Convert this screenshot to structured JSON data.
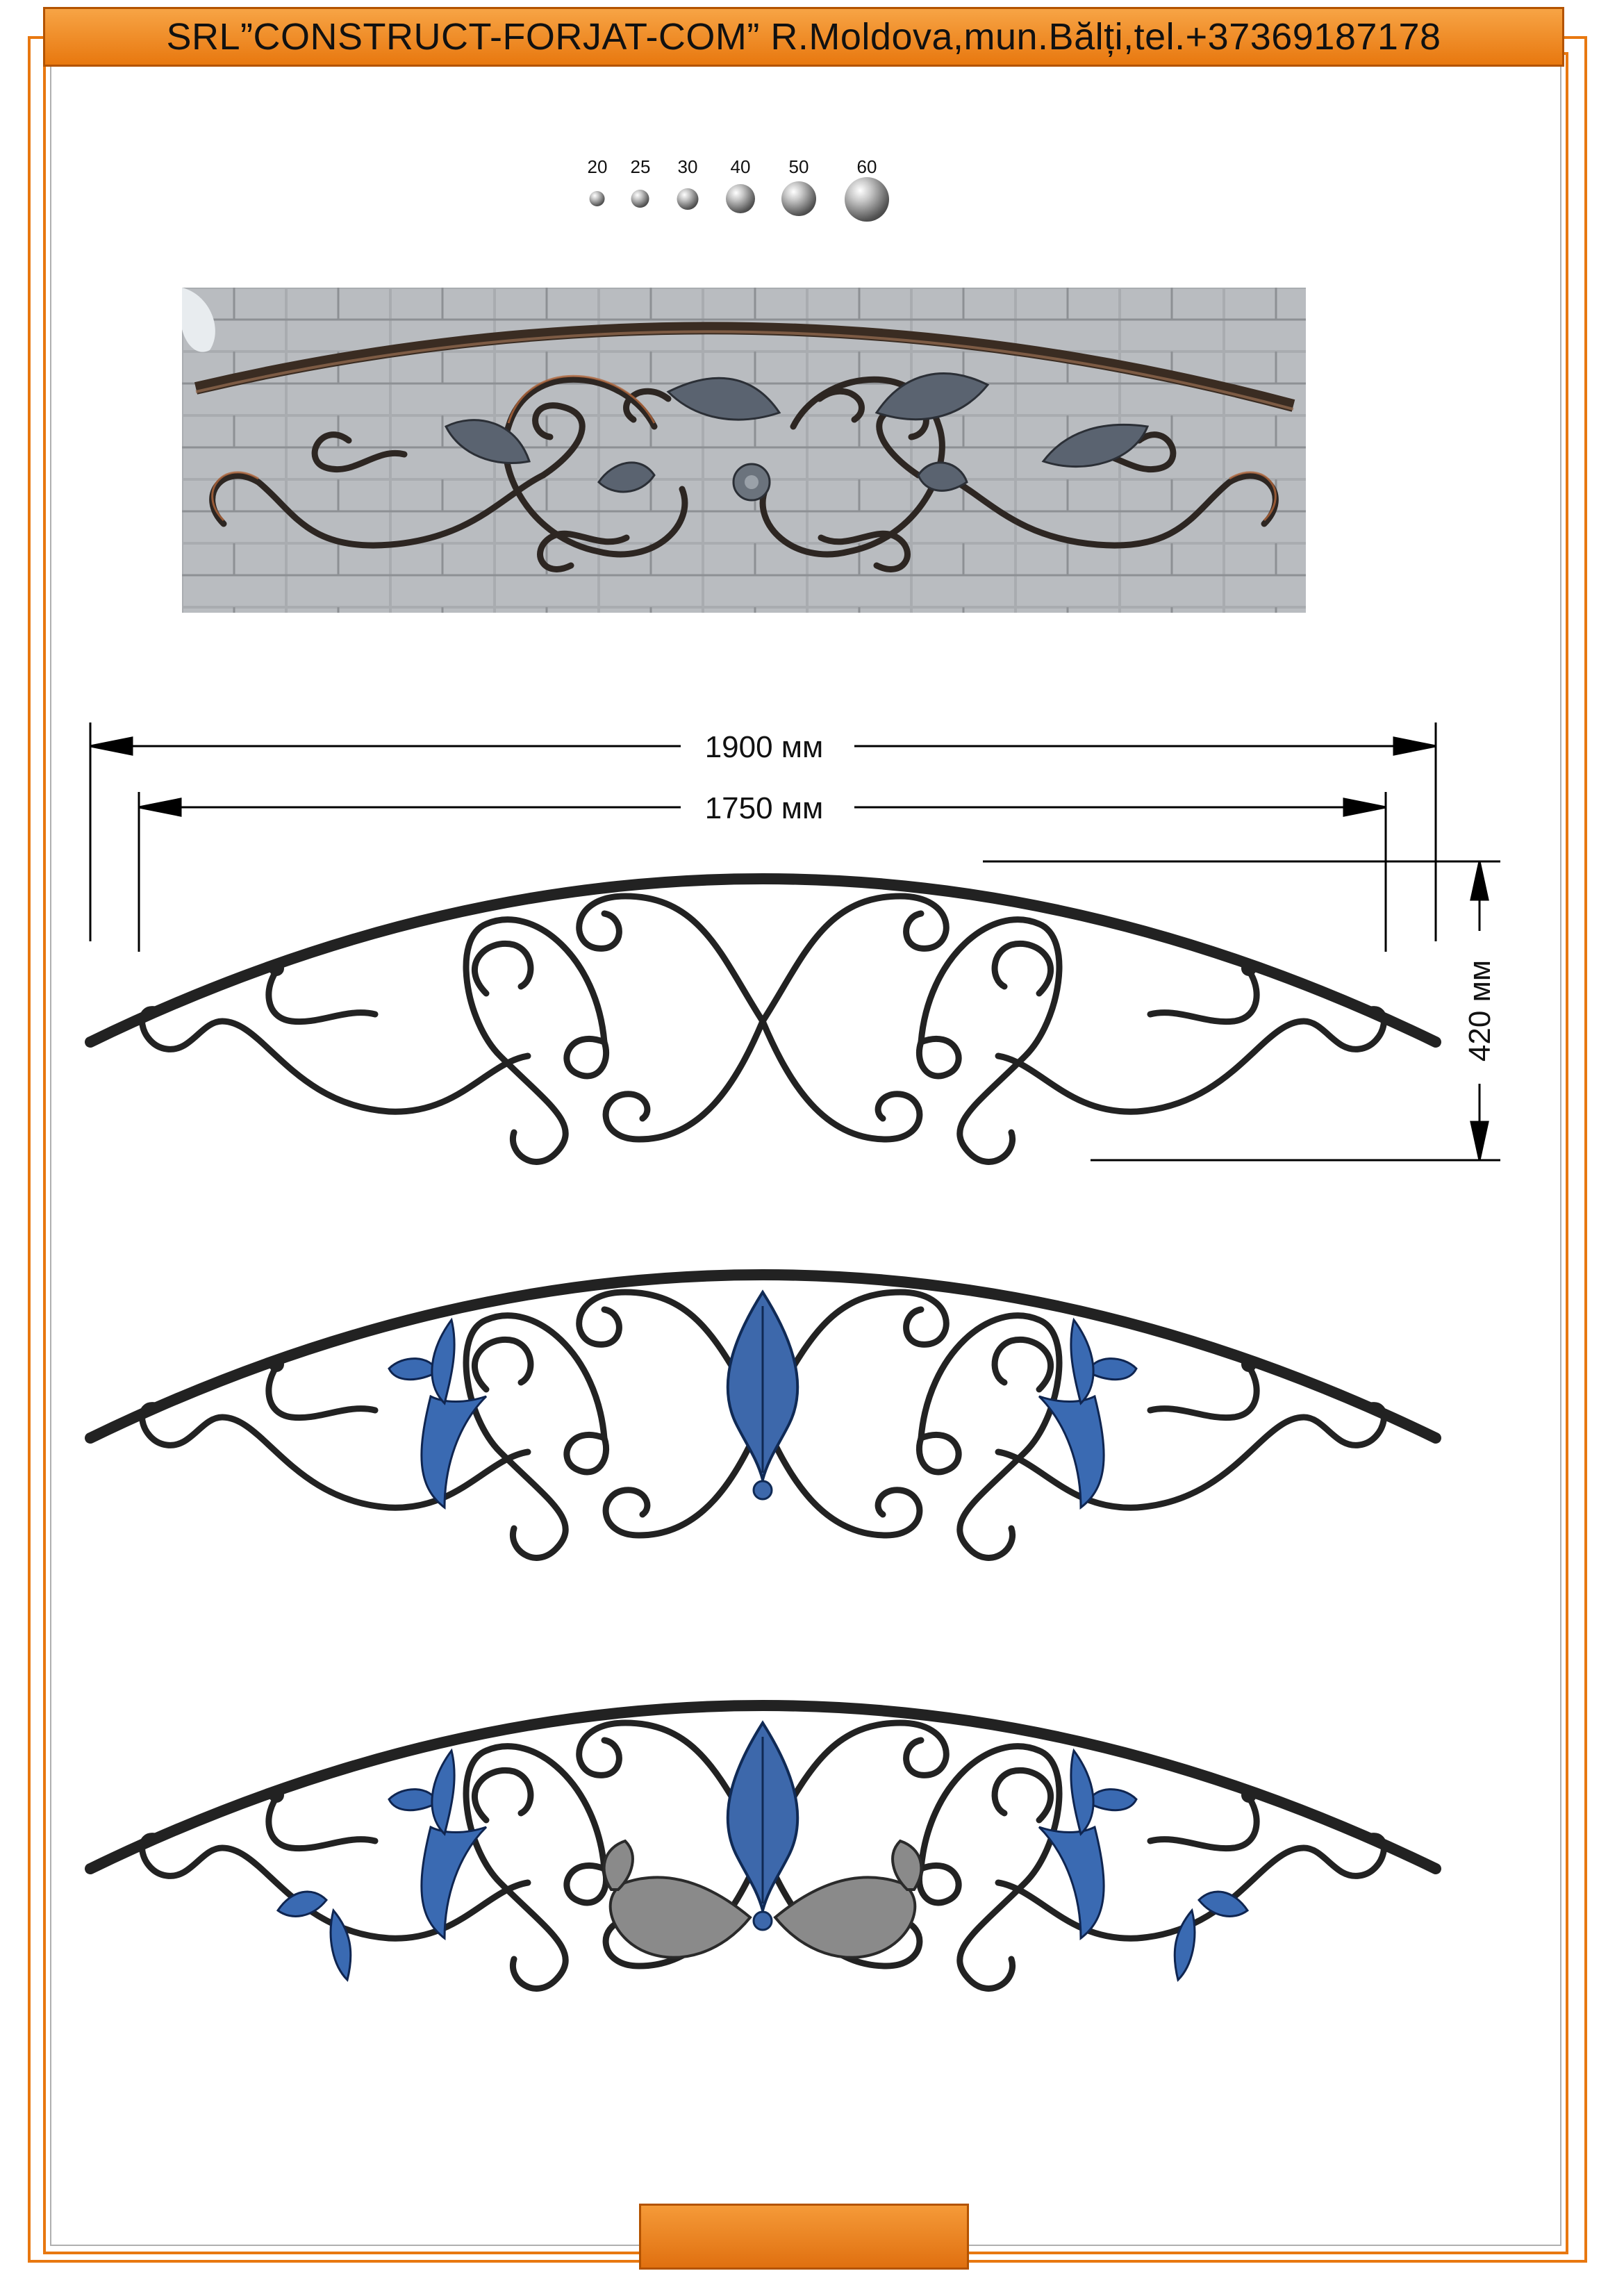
{
  "header": {
    "title": "SRL”CONSTRUCT-FORJAT-COM” R.Moldova,mun.Bălți,tel.+37369187178"
  },
  "ball_sizes": [
    "20",
    "25",
    "30",
    "40",
    "50",
    "60"
  ],
  "dimensions": {
    "outer_width": "1900 мм",
    "inner_width": "1750 мм",
    "height": "420 мм"
  },
  "colors": {
    "accent": "#e87810",
    "iron": "#222222",
    "leaf_blue": "#2f5fa8",
    "leaf_silver": "#8a8a8a"
  }
}
